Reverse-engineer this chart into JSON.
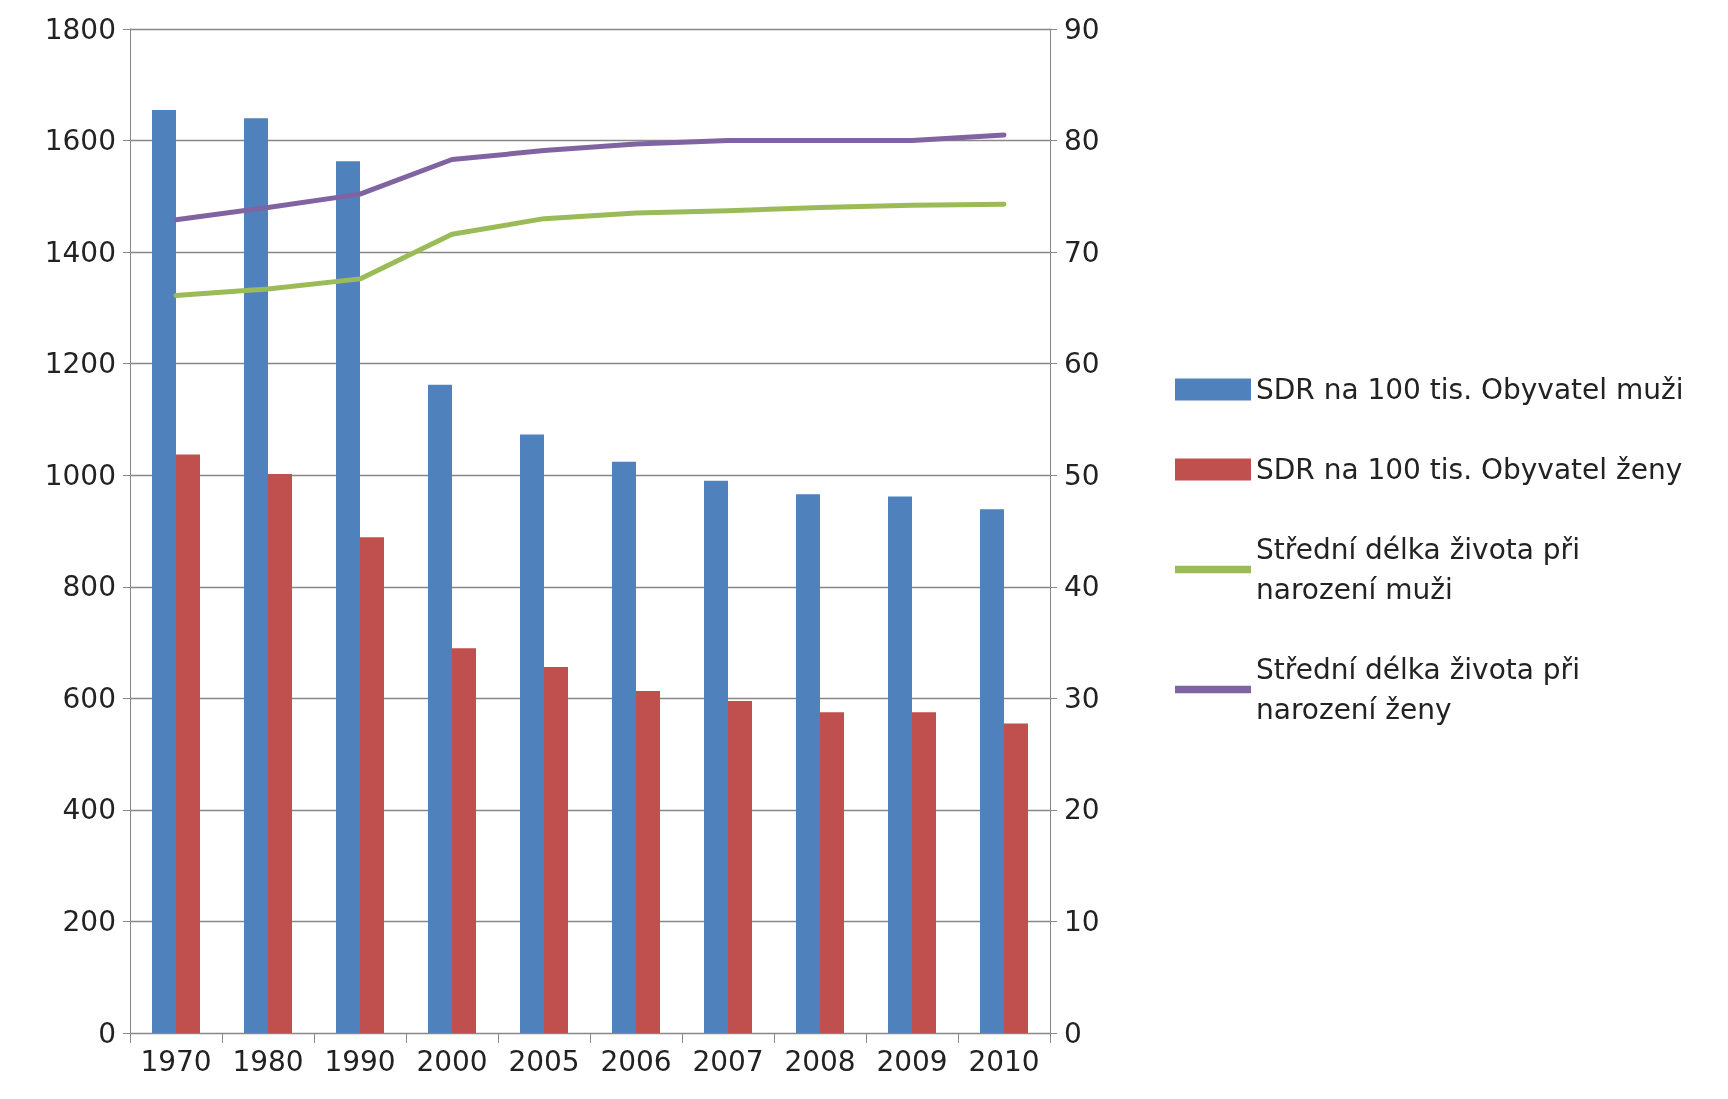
{
  "chart_data": {
    "type": "bar",
    "categories": [
      "1970",
      "1980",
      "1990",
      "2000",
      "2005",
      "2006",
      "2007",
      "2008",
      "2009",
      "2010"
    ],
    "series": [
      {
        "name": "SDR na 100 tis. Obyvatel muži",
        "color": "#4f81bd",
        "values": [
          1655,
          1640,
          1563,
          1162,
          1073,
          1024,
          990,
          966,
          962,
          939
        ]
      },
      {
        "name": "SDR na 100 tis. Obyvatel ženy",
        "color": "#c0504d",
        "values": [
          1037,
          1002,
          889,
          690,
          656,
          613,
          595,
          575,
          575,
          555
        ]
      },
      {
        "name": "Střední délka života při narození muži",
        "type": "line",
        "axis": "y2",
        "color": "#9bbb59",
        "values": [
          66.1,
          66.7,
          67.6,
          71.6,
          73.0,
          73.5,
          73.7,
          74.0,
          74.2,
          74.3
        ]
      },
      {
        "name": "Střední délka života při narození ženy",
        "type": "line",
        "axis": "y2",
        "color": "#8064a2",
        "values": [
          72.9,
          74.0,
          75.2,
          78.3,
          79.1,
          79.7,
          80.0,
          80.0,
          80.0,
          80.5
        ]
      }
    ],
    "ylim": [
      0,
      1800
    ],
    "yticks": [
      0,
      200,
      400,
      600,
      800,
      1000,
      1200,
      1400,
      1600,
      1800
    ],
    "y2lim": [
      0,
      90
    ],
    "y2ticks": [
      0,
      10,
      20,
      30,
      40,
      50,
      60,
      70,
      80,
      90
    ],
    "grid": "y",
    "legend": "right",
    "marker": "none"
  }
}
